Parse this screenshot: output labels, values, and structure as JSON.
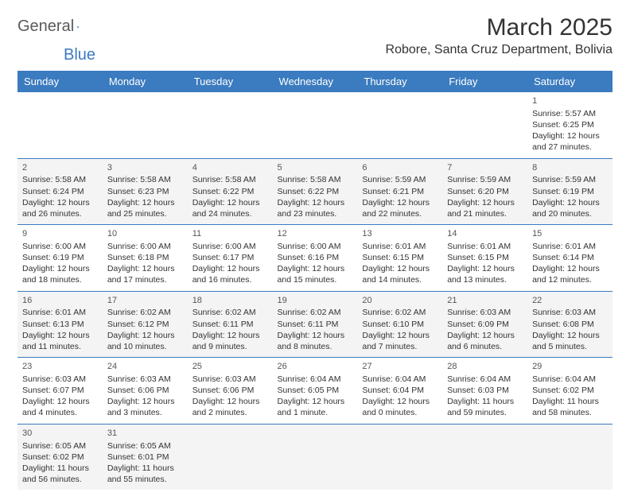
{
  "brand": {
    "part1": "General",
    "part2": "Blue"
  },
  "title": "March 2025",
  "location": "Robore, Santa Cruz Department, Bolivia",
  "colors": {
    "header_bg": "#3b7bbf",
    "header_fg": "#ffffff",
    "rule": "#3b7bbf",
    "alt_row": "#f4f4f4"
  },
  "weekdays": [
    "Sunday",
    "Monday",
    "Tuesday",
    "Wednesday",
    "Thursday",
    "Friday",
    "Saturday"
  ],
  "weeks": [
    [
      null,
      null,
      null,
      null,
      null,
      null,
      {
        "n": "1",
        "sr": "5:57 AM",
        "ss": "6:25 PM",
        "dl": "12 hours and 27 minutes."
      }
    ],
    [
      {
        "n": "2",
        "sr": "5:58 AM",
        "ss": "6:24 PM",
        "dl": "12 hours and 26 minutes."
      },
      {
        "n": "3",
        "sr": "5:58 AM",
        "ss": "6:23 PM",
        "dl": "12 hours and 25 minutes."
      },
      {
        "n": "4",
        "sr": "5:58 AM",
        "ss": "6:22 PM",
        "dl": "12 hours and 24 minutes."
      },
      {
        "n": "5",
        "sr": "5:58 AM",
        "ss": "6:22 PM",
        "dl": "12 hours and 23 minutes."
      },
      {
        "n": "6",
        "sr": "5:59 AM",
        "ss": "6:21 PM",
        "dl": "12 hours and 22 minutes."
      },
      {
        "n": "7",
        "sr": "5:59 AM",
        "ss": "6:20 PM",
        "dl": "12 hours and 21 minutes."
      },
      {
        "n": "8",
        "sr": "5:59 AM",
        "ss": "6:19 PM",
        "dl": "12 hours and 20 minutes."
      }
    ],
    [
      {
        "n": "9",
        "sr": "6:00 AM",
        "ss": "6:19 PM",
        "dl": "12 hours and 18 minutes."
      },
      {
        "n": "10",
        "sr": "6:00 AM",
        "ss": "6:18 PM",
        "dl": "12 hours and 17 minutes."
      },
      {
        "n": "11",
        "sr": "6:00 AM",
        "ss": "6:17 PM",
        "dl": "12 hours and 16 minutes."
      },
      {
        "n": "12",
        "sr": "6:00 AM",
        "ss": "6:16 PM",
        "dl": "12 hours and 15 minutes."
      },
      {
        "n": "13",
        "sr": "6:01 AM",
        "ss": "6:15 PM",
        "dl": "12 hours and 14 minutes."
      },
      {
        "n": "14",
        "sr": "6:01 AM",
        "ss": "6:15 PM",
        "dl": "12 hours and 13 minutes."
      },
      {
        "n": "15",
        "sr": "6:01 AM",
        "ss": "6:14 PM",
        "dl": "12 hours and 12 minutes."
      }
    ],
    [
      {
        "n": "16",
        "sr": "6:01 AM",
        "ss": "6:13 PM",
        "dl": "12 hours and 11 minutes."
      },
      {
        "n": "17",
        "sr": "6:02 AM",
        "ss": "6:12 PM",
        "dl": "12 hours and 10 minutes."
      },
      {
        "n": "18",
        "sr": "6:02 AM",
        "ss": "6:11 PM",
        "dl": "12 hours and 9 minutes."
      },
      {
        "n": "19",
        "sr": "6:02 AM",
        "ss": "6:11 PM",
        "dl": "12 hours and 8 minutes."
      },
      {
        "n": "20",
        "sr": "6:02 AM",
        "ss": "6:10 PM",
        "dl": "12 hours and 7 minutes."
      },
      {
        "n": "21",
        "sr": "6:03 AM",
        "ss": "6:09 PM",
        "dl": "12 hours and 6 minutes."
      },
      {
        "n": "22",
        "sr": "6:03 AM",
        "ss": "6:08 PM",
        "dl": "12 hours and 5 minutes."
      }
    ],
    [
      {
        "n": "23",
        "sr": "6:03 AM",
        "ss": "6:07 PM",
        "dl": "12 hours and 4 minutes."
      },
      {
        "n": "24",
        "sr": "6:03 AM",
        "ss": "6:06 PM",
        "dl": "12 hours and 3 minutes."
      },
      {
        "n": "25",
        "sr": "6:03 AM",
        "ss": "6:06 PM",
        "dl": "12 hours and 2 minutes."
      },
      {
        "n": "26",
        "sr": "6:04 AM",
        "ss": "6:05 PM",
        "dl": "12 hours and 1 minute."
      },
      {
        "n": "27",
        "sr": "6:04 AM",
        "ss": "6:04 PM",
        "dl": "12 hours and 0 minutes."
      },
      {
        "n": "28",
        "sr": "6:04 AM",
        "ss": "6:03 PM",
        "dl": "11 hours and 59 minutes."
      },
      {
        "n": "29",
        "sr": "6:04 AM",
        "ss": "6:02 PM",
        "dl": "11 hours and 58 minutes."
      }
    ],
    [
      {
        "n": "30",
        "sr": "6:05 AM",
        "ss": "6:02 PM",
        "dl": "11 hours and 56 minutes."
      },
      {
        "n": "31",
        "sr": "6:05 AM",
        "ss": "6:01 PM",
        "dl": "11 hours and 55 minutes."
      },
      null,
      null,
      null,
      null,
      null
    ]
  ],
  "labels": {
    "sunrise": "Sunrise: ",
    "sunset": "Sunset: ",
    "daylight": "Daylight: "
  }
}
